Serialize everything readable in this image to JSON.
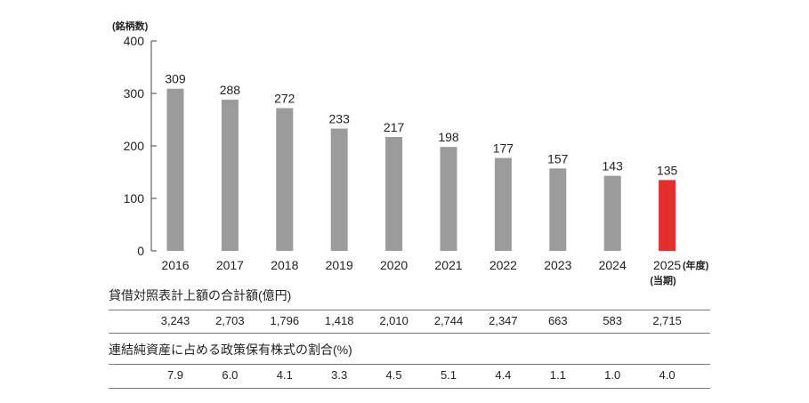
{
  "chart_data": {
    "type": "bar",
    "y_unit_label": "(銘柄数)",
    "categories": [
      "2016",
      "2017",
      "2018",
      "2019",
      "2020",
      "2021",
      "2022",
      "2023",
      "2024",
      "2025"
    ],
    "values": [
      309,
      288,
      272,
      233,
      217,
      198,
      177,
      157,
      143,
      135
    ],
    "highlight_index": 9,
    "x_unit_label": "(年度)",
    "last_category_note": "(当期)",
    "ylim": [
      0,
      400
    ],
    "yticks": [
      0,
      100,
      200,
      300,
      400
    ],
    "grid": false,
    "bar_color": "#9b9b9b",
    "highlight_color": "#e52e2e"
  },
  "table": {
    "book_value": {
      "title": "貸借対照表計上額の合計額(億円)",
      "values": [
        "3,243",
        "2,703",
        "1,796",
        "1,418",
        "2,010",
        "2,744",
        "2,347",
        "663",
        "583",
        "2,715"
      ]
    },
    "ratio": {
      "title": "連結純資産に占める政策保有株式の割合(%)",
      "values": [
        "7.9",
        "6.0",
        "4.1",
        "3.3",
        "4.5",
        "5.1",
        "4.4",
        "1.1",
        "1.0",
        "4.0"
      ]
    }
  }
}
